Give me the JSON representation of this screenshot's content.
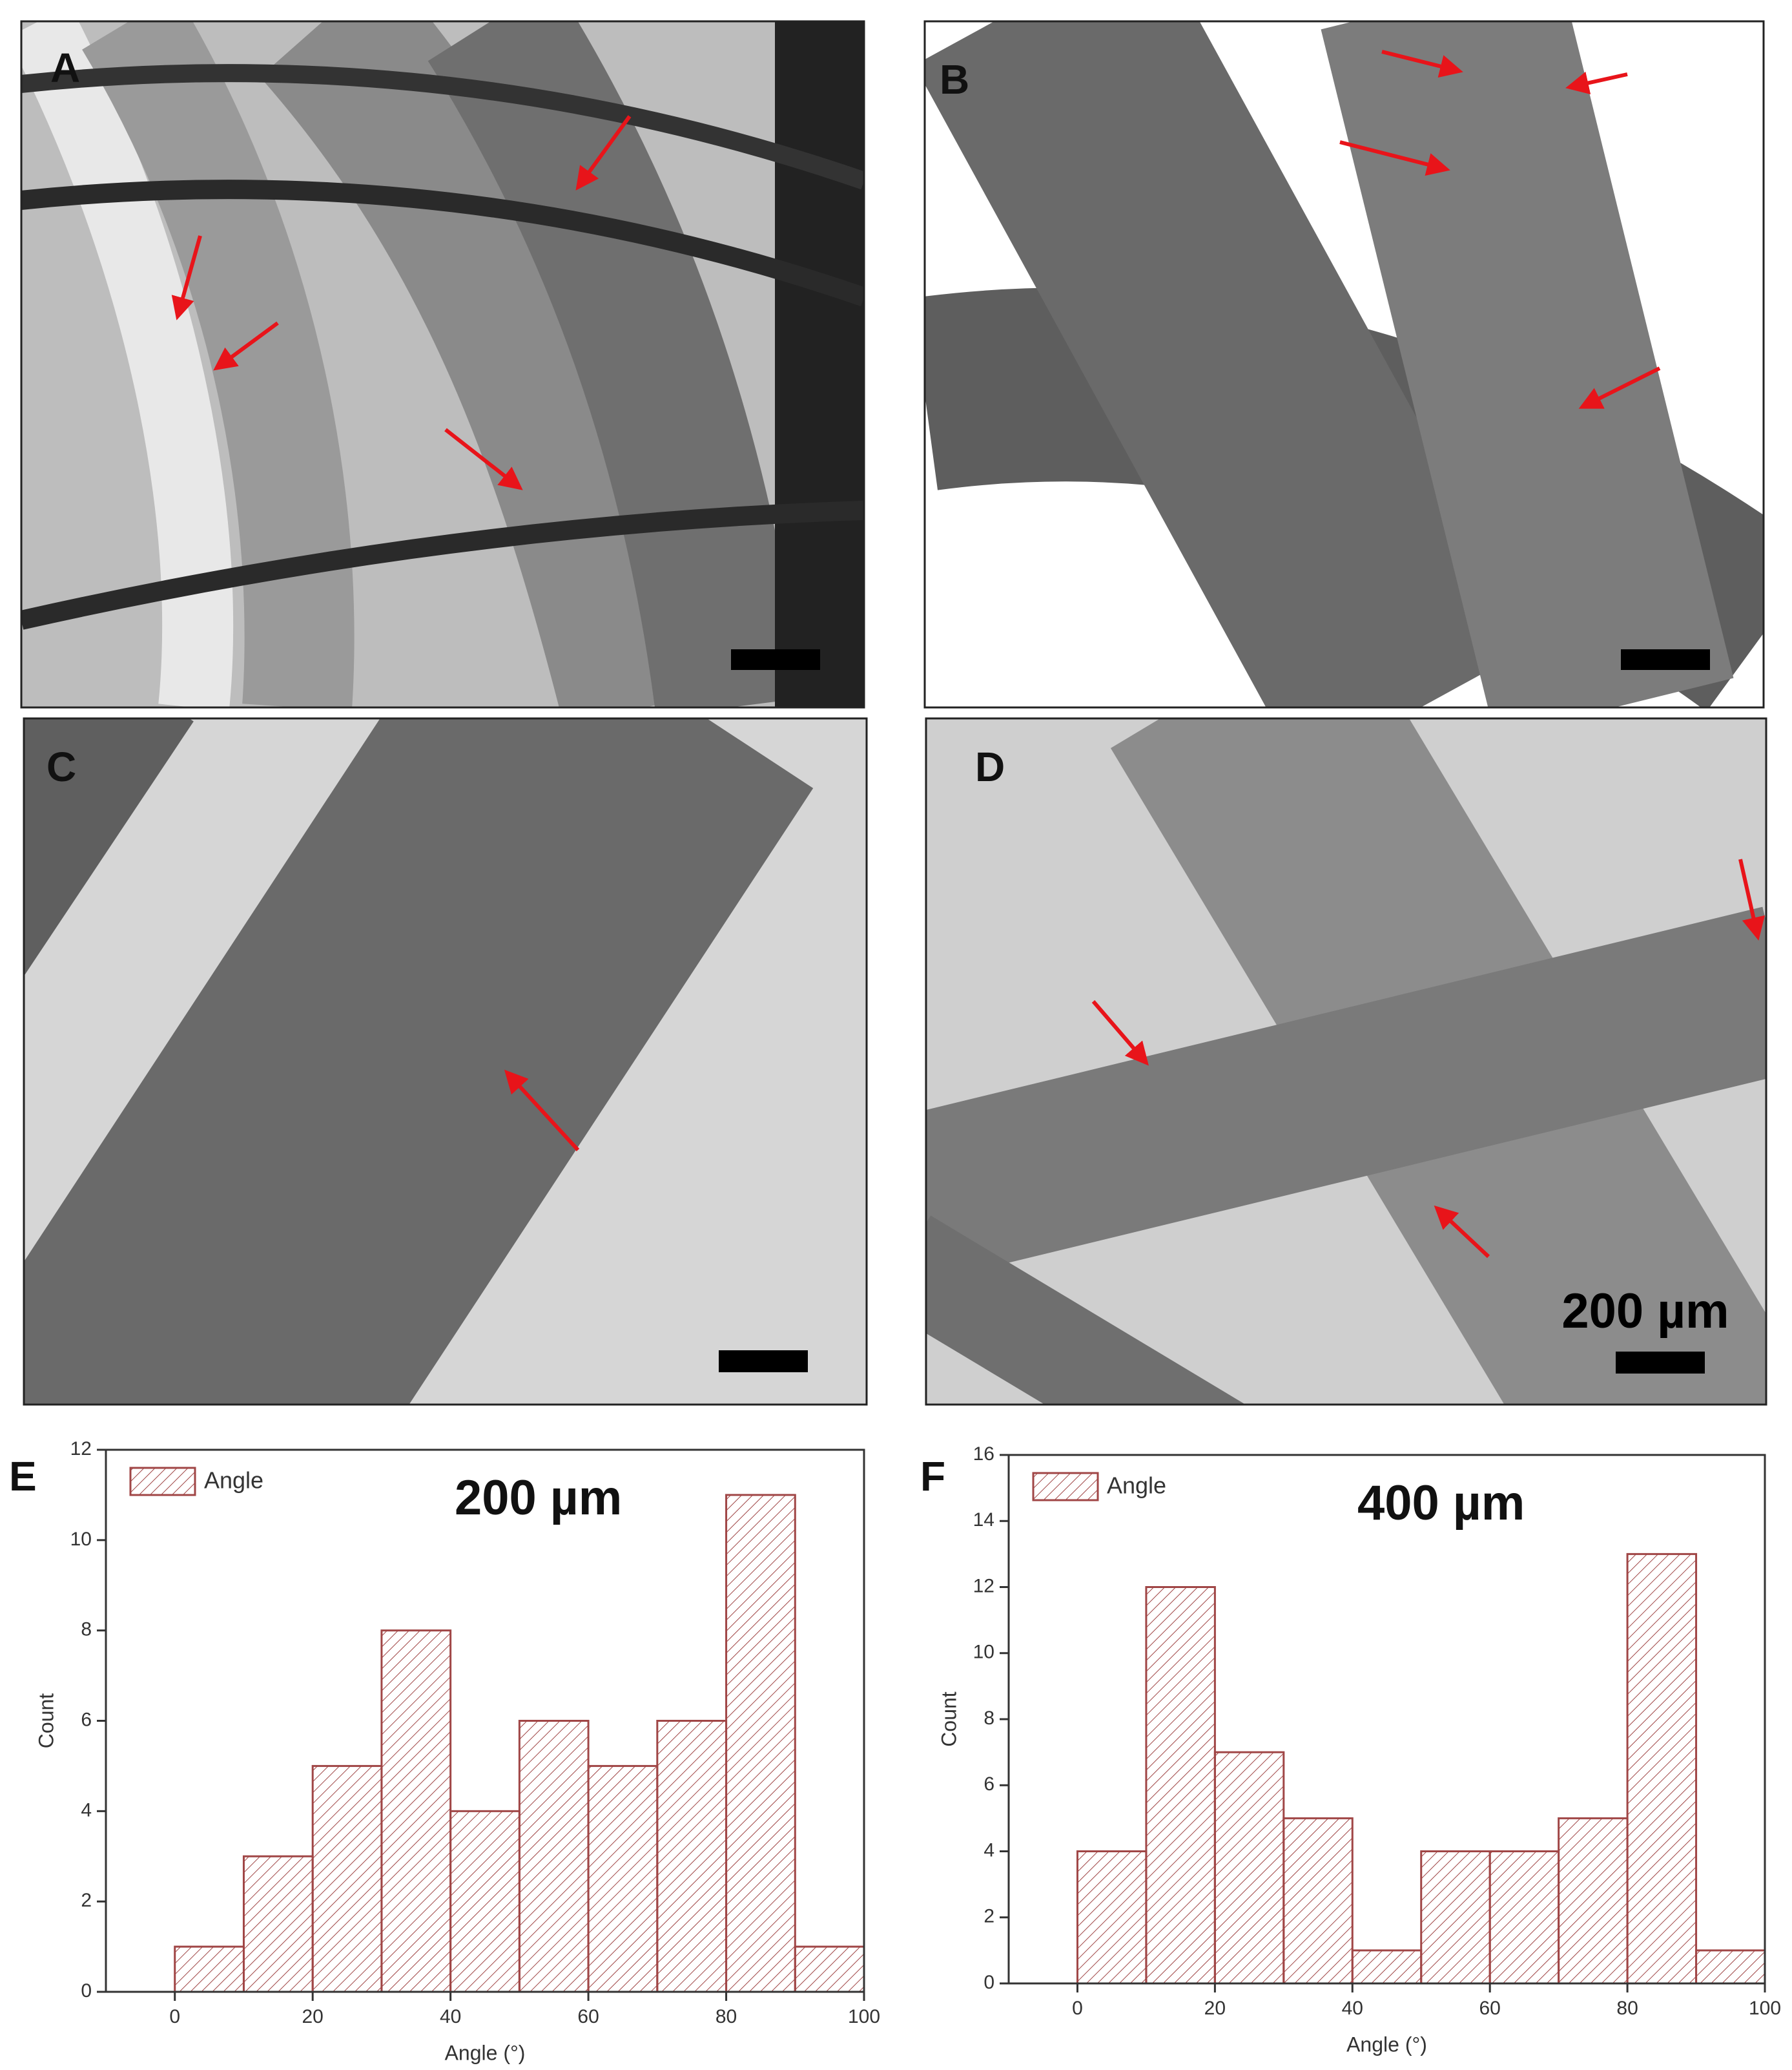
{
  "images": [
    {
      "label": "A"
    },
    {
      "label": "B"
    },
    {
      "label": "C"
    },
    {
      "label": "D",
      "scale_text": "200 µm"
    }
  ],
  "chart_data": [
    {
      "type": "histogram",
      "panel_label": "E",
      "annotation": "200 µm",
      "legend": "Angle",
      "color": "#a04646",
      "bins": [
        0,
        10,
        20,
        30,
        40,
        50,
        60,
        70,
        80,
        90,
        100
      ],
      "values": [
        1,
        3,
        5,
        8,
        4,
        6,
        5,
        6,
        11,
        1
      ],
      "xlabel": "Angle (°)",
      "ylabel": "Count",
      "xlim": [
        -10,
        100
      ],
      "ylim": [
        0,
        12
      ],
      "xticks": [
        0,
        20,
        40,
        60,
        80,
        100
      ],
      "yticks": [
        0,
        2,
        4,
        6,
        8,
        10,
        12
      ]
    },
    {
      "type": "histogram",
      "panel_label": "F",
      "annotation": "400 µm",
      "legend": "Angle",
      "color": "#a04646",
      "bins": [
        0,
        10,
        20,
        30,
        40,
        50,
        60,
        70,
        80,
        90,
        100
      ],
      "values": [
        4,
        12,
        7,
        5,
        1,
        4,
        4,
        5,
        13,
        1
      ],
      "xlabel": "Angle (°)",
      "ylabel": "Count",
      "xlim": [
        -10,
        100
      ],
      "ylim": [
        0,
        16
      ],
      "xticks": [
        0,
        20,
        40,
        60,
        80,
        100
      ],
      "yticks": [
        0,
        2,
        4,
        6,
        8,
        10,
        12,
        14,
        16
      ]
    }
  ]
}
